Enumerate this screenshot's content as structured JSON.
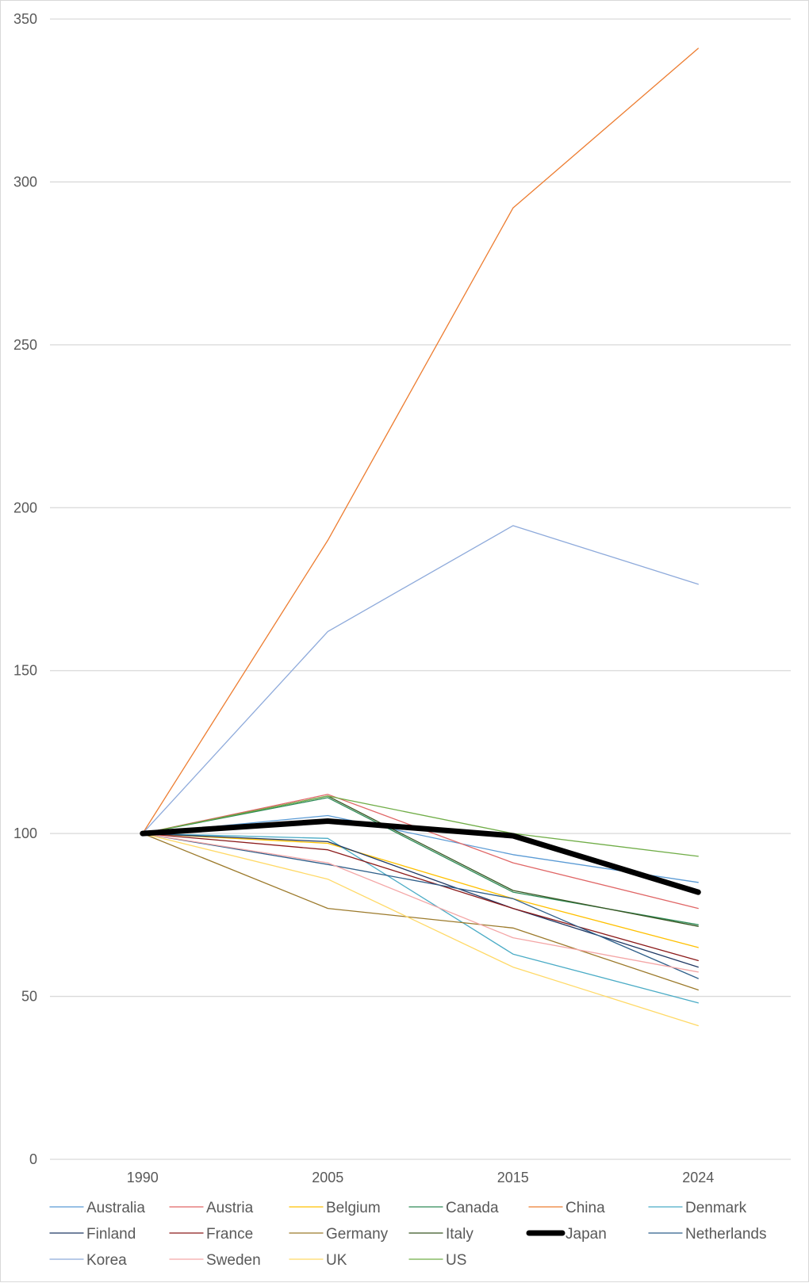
{
  "chart_data": {
    "type": "line",
    "title": "",
    "xlabel": "",
    "ylabel": "",
    "x": [
      "1990",
      "2005",
      "2015",
      "2024"
    ],
    "ylim": [
      0,
      350
    ],
    "yticks": [
      0,
      50,
      100,
      150,
      200,
      250,
      300,
      350
    ],
    "grid": true,
    "legend_position": "bottom",
    "series": [
      {
        "name": "Australia",
        "color": "#5b9bd5",
        "values": [
          100,
          105.5,
          93.5,
          85
        ]
      },
      {
        "name": "Austria",
        "color": "#e06666",
        "values": [
          100,
          112,
          91,
          77
        ]
      },
      {
        "name": "Belgium",
        "color": "#ffc000",
        "values": [
          100,
          97,
          80,
          65
        ]
      },
      {
        "name": "Canada",
        "color": "#2e8b57",
        "values": [
          100,
          111,
          82,
          72
        ]
      },
      {
        "name": "China",
        "color": "#ed7d31",
        "values": [
          100,
          190,
          292,
          341
        ]
      },
      {
        "name": "Denmark",
        "color": "#4bacc6",
        "values": [
          100,
          98.5,
          63,
          48
        ]
      },
      {
        "name": "Finland",
        "color": "#1f3864",
        "values": [
          100,
          97.5,
          77,
          59
        ]
      },
      {
        "name": "France",
        "color": "#8b1a1a",
        "values": [
          100,
          95,
          77,
          61
        ]
      },
      {
        "name": "Germany",
        "color": "#9c7a2b",
        "values": [
          100,
          77,
          71,
          52
        ]
      },
      {
        "name": "Italy",
        "color": "#375623",
        "values": [
          100,
          111.5,
          82.5,
          71.5
        ]
      },
      {
        "name": "Japan",
        "color": "#000000",
        "values": [
          100,
          103.8,
          99.3,
          82
        ]
      },
      {
        "name": "Netherlands",
        "color": "#2f5f8a",
        "values": [
          100,
          90.5,
          80,
          55.5
        ]
      },
      {
        "name": "Korea",
        "color": "#8eaadb",
        "values": [
          100,
          162,
          194.5,
          176.5
        ]
      },
      {
        "name": "Sweden",
        "color": "#f4a6a6",
        "values": [
          100,
          91,
          68,
          57.5
        ]
      },
      {
        "name": "UK",
        "color": "#ffd966",
        "values": [
          100,
          86,
          59,
          41
        ]
      },
      {
        "name": "US",
        "color": "#70ad47",
        "values": [
          100,
          111.5,
          100,
          93
        ]
      }
    ]
  }
}
